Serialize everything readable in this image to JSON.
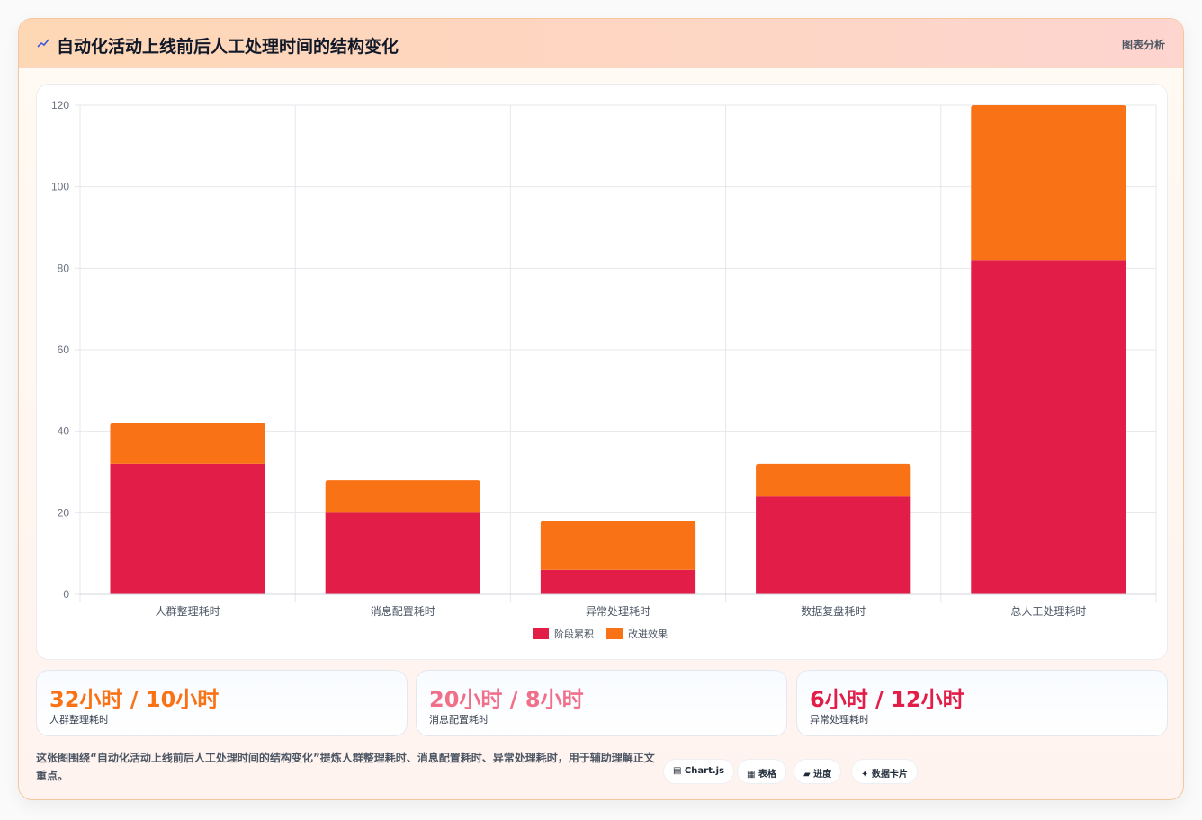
{
  "header": {
    "title": "自动化活动上线前后人工处理时间的结构变化",
    "tag": "图表分析"
  },
  "chart_data": {
    "type": "bar",
    "stacked": true,
    "categories": [
      "人群整理耗时",
      "消息配置耗时",
      "异常处理耗时",
      "数据复盘耗时",
      "总人工处理耗时"
    ],
    "series": [
      {
        "name": "阶段累积",
        "color": "#e11d48",
        "values": [
          32,
          20,
          6,
          24,
          82
        ]
      },
      {
        "name": "改进效果",
        "color": "#f97316",
        "values": [
          10,
          8,
          12,
          8,
          38
        ]
      }
    ],
    "ylim": [
      0,
      120
    ],
    "yticks": [
      0,
      20,
      40,
      60,
      80,
      100,
      120
    ],
    "grid": true,
    "legend": "bottom"
  },
  "stats": [
    {
      "value": "32小时 / 10小时",
      "label": "人群整理耗时",
      "color": "#f97316"
    },
    {
      "value": "20小时 / 8小时",
      "label": "消息配置耗时",
      "color": "#f0708a"
    },
    {
      "value": "6小时 / 12小时",
      "label": "异常处理耗时",
      "color": "#e11d48"
    }
  ],
  "note": "这张图围绕“自动化活动上线前后人工处理时间的结构变化”提炼人群整理耗时、消息配置耗时、异常处理耗时，用于辅助理解正文重点。",
  "chips": [
    {
      "label": "▤ Chart.js"
    },
    {
      "label": "▦ 表格"
    },
    {
      "label": "▰ 进度"
    },
    {
      "label": "✦ 数据卡片"
    }
  ],
  "colors": {
    "accent": "#f97316",
    "primary": "#e11d48"
  }
}
